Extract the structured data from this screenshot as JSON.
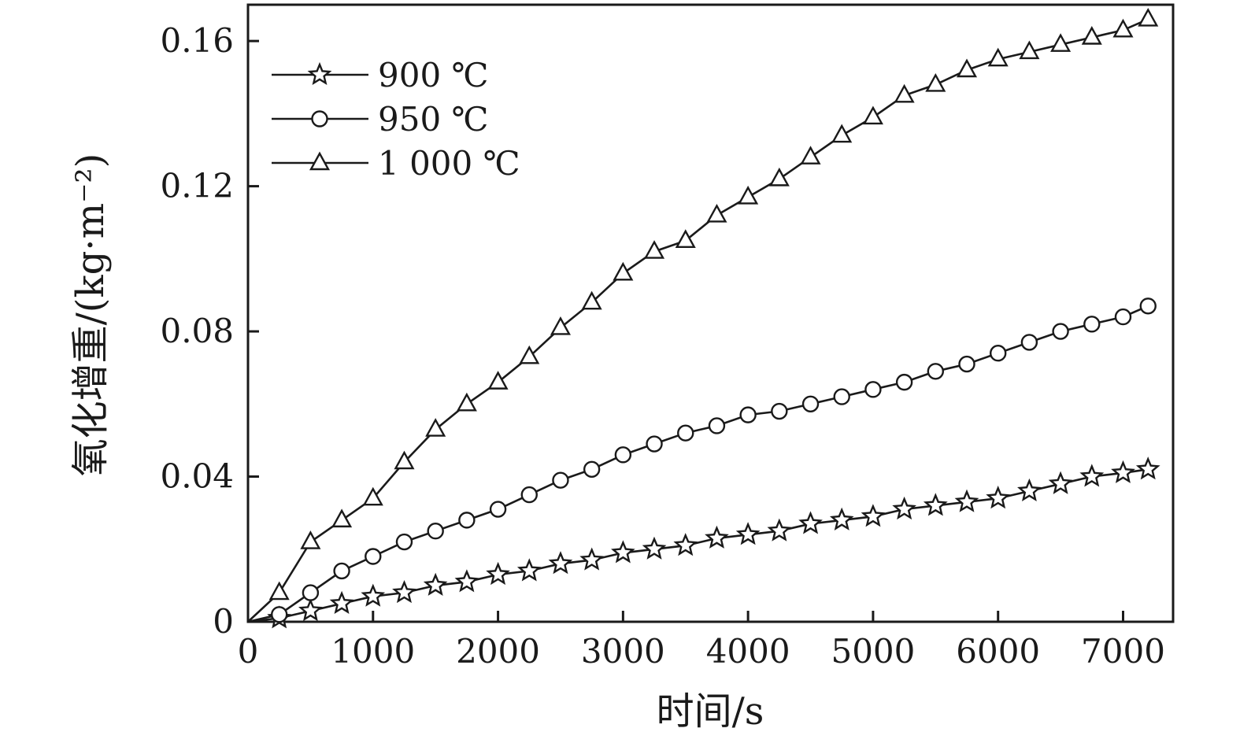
{
  "colors": {
    "line": "#1a1a1a",
    "marker_fill": "#ffffff",
    "background": "#ffffff"
  },
  "chart_data": {
    "type": "line",
    "title": "",
    "xlabel": "时间/s",
    "ylabel": "氧化增重/(kg·m⁻²)",
    "xlim": [
      0,
      7400
    ],
    "ylim": [
      0,
      0.17
    ],
    "x_ticks": [
      0,
      1000,
      2000,
      3000,
      4000,
      5000,
      6000,
      7000
    ],
    "x_tick_labels": [
      "0",
      "1000",
      "2000",
      "3000",
      "4000",
      "5000",
      "6000",
      "7000"
    ],
    "y_ticks": [
      0,
      0.04,
      0.08,
      0.12,
      0.16
    ],
    "y_tick_labels": [
      "0",
      "0.04",
      "0.08",
      "0.12",
      "0.16"
    ],
    "grid": false,
    "legend_position": "top-left-inside",
    "x": [
      0,
      250,
      500,
      750,
      1000,
      1250,
      1500,
      1750,
      2000,
      2250,
      2500,
      2750,
      3000,
      3250,
      3500,
      3750,
      4000,
      4250,
      4500,
      4750,
      5000,
      5250,
      5500,
      5750,
      6000,
      6250,
      6500,
      6750,
      7000,
      7200
    ],
    "series": [
      {
        "name": "900 ℃",
        "marker": "star",
        "y": [
          0,
          0.001,
          0.003,
          0.005,
          0.007,
          0.008,
          0.01,
          0.011,
          0.013,
          0.014,
          0.016,
          0.017,
          0.019,
          0.02,
          0.021,
          0.023,
          0.024,
          0.025,
          0.027,
          0.028,
          0.029,
          0.031,
          0.032,
          0.033,
          0.034,
          0.036,
          0.038,
          0.04,
          0.041,
          0.042
        ]
      },
      {
        "name": "950 ℃",
        "marker": "circle",
        "y": [
          0,
          0.002,
          0.008,
          0.014,
          0.018,
          0.022,
          0.025,
          0.028,
          0.031,
          0.035,
          0.039,
          0.042,
          0.046,
          0.049,
          0.052,
          0.054,
          0.057,
          0.058,
          0.06,
          0.062,
          0.064,
          0.066,
          0.069,
          0.071,
          0.074,
          0.077,
          0.08,
          0.082,
          0.084,
          0.087
        ]
      },
      {
        "name": "1 000 ℃",
        "marker": "triangle",
        "y": [
          0,
          0.008,
          0.022,
          0.028,
          0.034,
          0.044,
          0.053,
          0.06,
          0.066,
          0.073,
          0.081,
          0.088,
          0.096,
          0.102,
          0.105,
          0.112,
          0.117,
          0.122,
          0.128,
          0.134,
          0.139,
          0.145,
          0.148,
          0.152,
          0.155,
          0.157,
          0.159,
          0.161,
          0.163,
          0.166
        ]
      }
    ]
  }
}
